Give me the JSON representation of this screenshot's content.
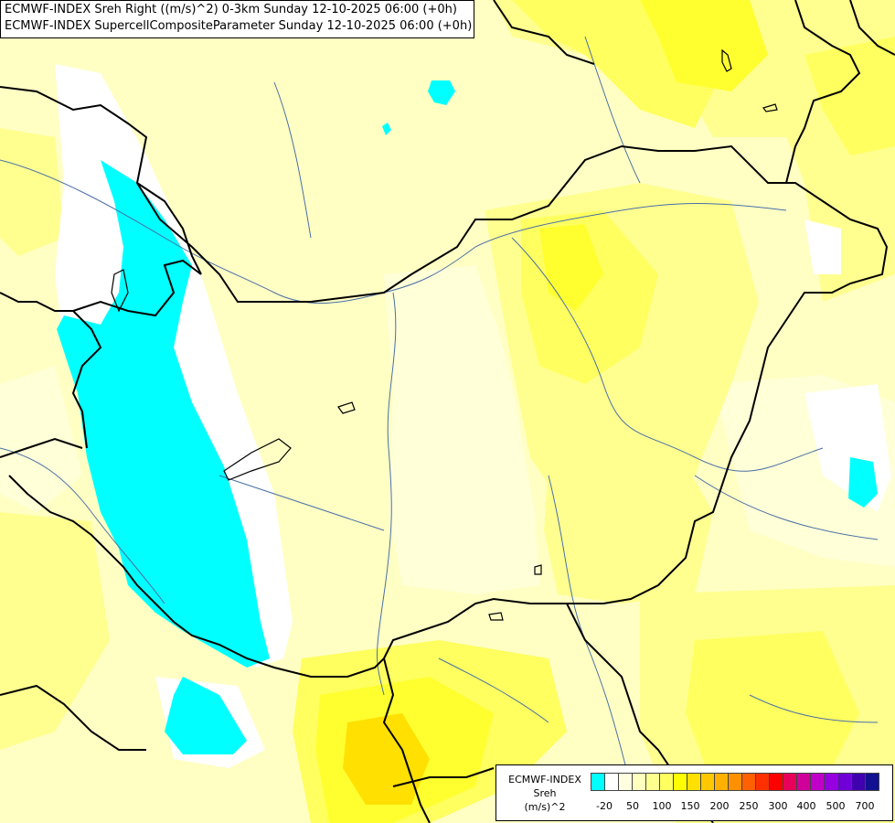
{
  "title": {
    "line1": "ECMWF-INDEX Sreh Right ((m/s)^2) 0-3km Sunday 12-10-2025 06:00 (+0h)",
    "line2": "ECMWF-INDEX SupercellCompositeParameter Sunday 12-10-2025 06:00 (+0h)"
  },
  "legend": {
    "source": "ECMWF-INDEX",
    "variable": "Sreh",
    "unit": "(m/s)^2",
    "colors": [
      "#00ffff",
      "#ffffff",
      "#ffffe0",
      "#ffffc0",
      "#ffff90",
      "#ffff60",
      "#ffff00",
      "#ffe000",
      "#ffc800",
      "#ffb000",
      "#ff9000",
      "#ff6000",
      "#ff3000",
      "#ff0000",
      "#e8005a",
      "#d0009a",
      "#c000c8",
      "#9600e0",
      "#7000d8",
      "#4000b0",
      "#101090"
    ],
    "tick_labels": [
      "-20",
      "50",
      "100",
      "150",
      "200",
      "250",
      "300",
      "400",
      "500",
      "700"
    ]
  },
  "colors": {
    "background": "#ffffc4",
    "low_sreh": "#00ffff",
    "moderate_sreh": "#ffff00",
    "border": "#000000",
    "river": "#4a6fa5"
  }
}
